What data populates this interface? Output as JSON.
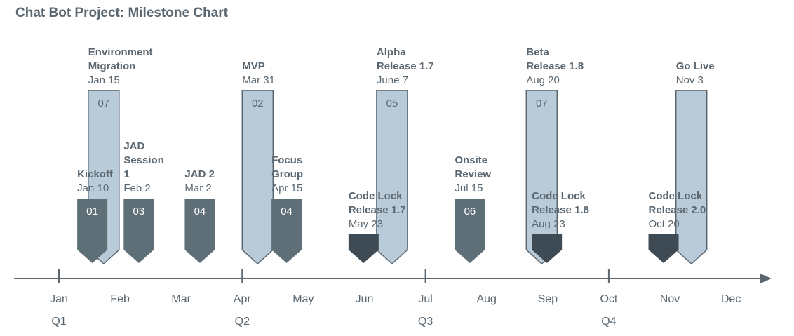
{
  "chart_data": {
    "type": "milestone-timeline",
    "title": "Chat Bot Project: Milestone Chart",
    "months": [
      "Jan",
      "Feb",
      "Mar",
      "Apr",
      "May",
      "Jun",
      "Jul",
      "Aug",
      "Sep",
      "Oct",
      "Nov",
      "Dec"
    ],
    "quarters": [
      "Q1",
      "Q2",
      "Q3",
      "Q4"
    ],
    "colors": {
      "tall": "#b9cbd9",
      "tall_stroke": "#5b6770",
      "medium": "#5f6f78",
      "short": "#3e4b55",
      "axis": "#5b6770",
      "text": "#5b6770"
    },
    "milestones": [
      {
        "name_lines": [
          "Kickoff"
        ],
        "date": "Jan 10",
        "month": 0.3,
        "number": "01",
        "kind": "medium"
      },
      {
        "name_lines": [
          "Environment",
          "Migration"
        ],
        "date": "Jan 15",
        "month": 0.48,
        "number": "07",
        "kind": "tall"
      },
      {
        "name_lines": [
          "JAD",
          "Session",
          "1"
        ],
        "date": "Feb 2",
        "month": 1.06,
        "number": "03",
        "kind": "medium"
      },
      {
        "name_lines": [
          "JAD 2"
        ],
        "date": "Mar 2",
        "month": 2.06,
        "number": "04",
        "kind": "medium"
      },
      {
        "name_lines": [
          "MVP"
        ],
        "date": "Mar 31",
        "month": 3.0,
        "number": "02",
        "kind": "tall"
      },
      {
        "name_lines": [
          "Focus",
          "Group"
        ],
        "date": "Apr 15",
        "month": 3.48,
        "number": "04",
        "kind": "medium"
      },
      {
        "name_lines": [
          "Code Lock",
          "Release 1.7"
        ],
        "date": "May 23",
        "month": 4.74,
        "number": "",
        "kind": "short"
      },
      {
        "name_lines": [
          "Alpha",
          "Release 1.7"
        ],
        "date": "June 7",
        "month": 5.2,
        "number": "05",
        "kind": "tall"
      },
      {
        "name_lines": [
          "Onsite",
          "Review"
        ],
        "date": "Jul 15",
        "month": 6.48,
        "number": "06",
        "kind": "medium"
      },
      {
        "name_lines": [
          "Code Lock",
          "Release 1.8"
        ],
        "date": "Aug 23",
        "month": 7.74,
        "number": "",
        "kind": "short"
      },
      {
        "name_lines": [
          "Beta",
          "Release 1.8"
        ],
        "date": "Aug 20",
        "month": 7.65,
        "number": "07",
        "kind": "tall"
      },
      {
        "name_lines": [
          "Code Lock",
          "Release 2.0"
        ],
        "date": "Oct 20",
        "month": 9.65,
        "number": "",
        "kind": "short"
      },
      {
        "name_lines": [
          "Go Live"
        ],
        "date": "Nov 3",
        "month": 10.1,
        "number": "",
        "kind": "tall"
      }
    ]
  }
}
